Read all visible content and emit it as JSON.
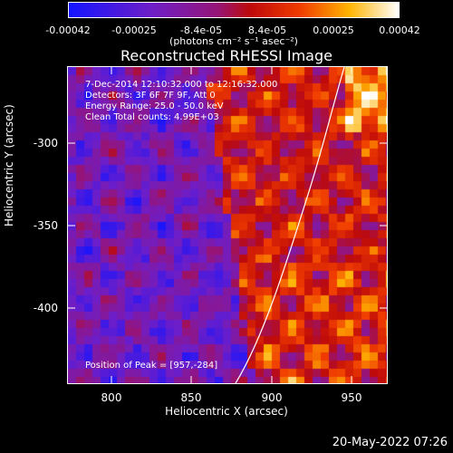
{
  "colorbar": {
    "tick_labels": [
      "-0.00042",
      "-0.00025",
      "-8.4e-05",
      "8.4e-05",
      "0.00025",
      "0.00042"
    ],
    "unit_label": "(photons cm⁻² s⁻¹ asec⁻²)",
    "colormap": "RHESSI blue-purple-red-yellow-white"
  },
  "image": {
    "title": "Reconstructed RHESSI Image",
    "info_lines": [
      "7-Dec-2014 12:10:32.000 to 12:16:32.000",
      "Detectors: 3F 6F 7F 9F, Att 0",
      "Energy Range: 25.0 - 50.0 keV",
      "Clean     Total counts: 4.99E+03"
    ],
    "peak_label": "Position of Peak = [957,-284]",
    "x_axis_title": "Heliocentric X (arcsec)",
    "y_axis_title": "Heliocentric Y (arcsec)",
    "x_ticks": [
      "800",
      "850",
      "900",
      "950"
    ],
    "y_ticks": [
      "-300",
      "-350",
      "-400"
    ],
    "xlim": [
      775,
      965
    ],
    "ylim": [
      -450,
      -258
    ],
    "limb_line": "solar limb drawn as white line"
  },
  "footer": {
    "timestamp": "20-May-2022 07:26"
  }
}
